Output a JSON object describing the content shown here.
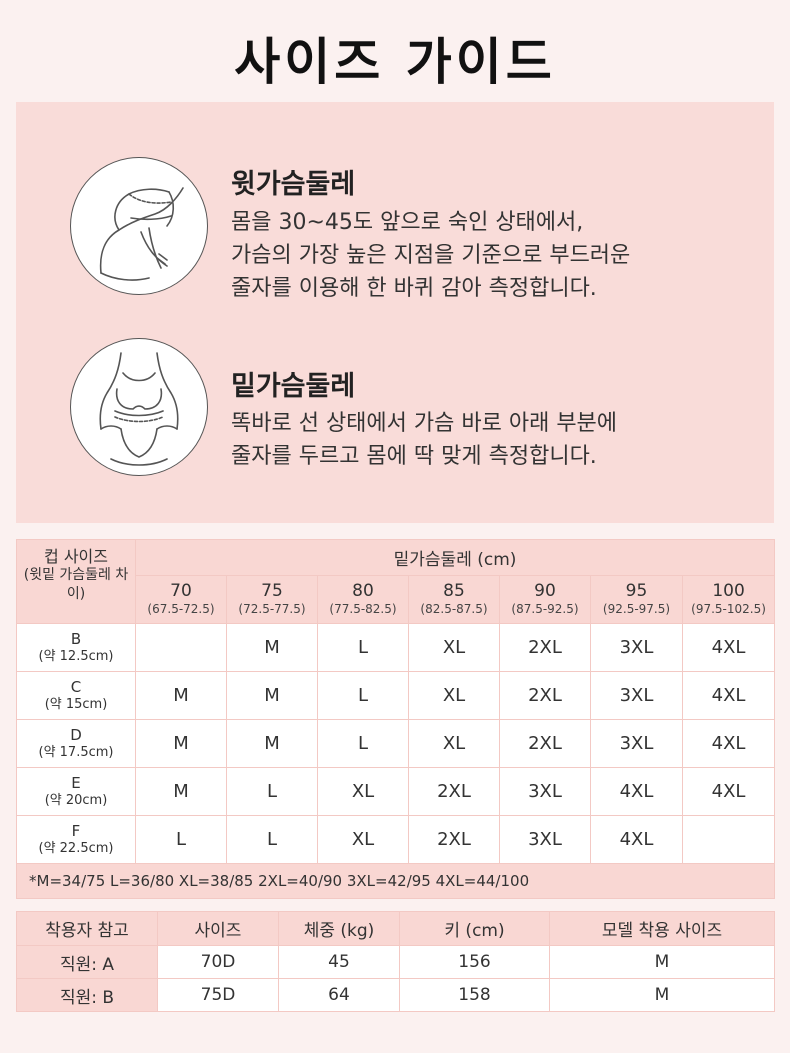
{
  "title": "사이즈 가이드",
  "guide": [
    {
      "heading": "윗가슴둘레",
      "lines": [
        "몸을 30~45도 앞으로 숙인 상태에서,",
        "가슴의 가장 높은 지점을 기준으로 부드러운",
        "줄자를 이용해 한 바퀴 감아 측정합니다."
      ]
    },
    {
      "heading": "밑가슴둘레",
      "lines": [
        "똑바로 선 상태에서 가슴 바로 아래 부분에",
        "줄자를 두르고 몸에 딱 맞게 측정합니다."
      ]
    }
  ],
  "size_table": {
    "corner_title": "컵 사이즈",
    "corner_sub": "(윗밑 가슴둘레 차이)",
    "band_header": "밑가슴둘레 (cm)",
    "columns": [
      {
        "size": "70",
        "range": "(67.5-72.5)"
      },
      {
        "size": "75",
        "range": "(72.5-77.5)"
      },
      {
        "size": "80",
        "range": "(77.5-82.5)"
      },
      {
        "size": "85",
        "range": "(82.5-87.5)"
      },
      {
        "size": "90",
        "range": "(87.5-92.5)"
      },
      {
        "size": "95",
        "range": "(92.5-97.5)"
      },
      {
        "size": "100",
        "range": "(97.5-102.5)"
      }
    ],
    "rows": [
      {
        "cup": "B",
        "diff": "(약 12.5cm)",
        "cells": [
          "",
          "M",
          "L",
          "XL",
          "2XL",
          "3XL",
          "4XL"
        ]
      },
      {
        "cup": "C",
        "diff": "(약 15cm)",
        "cells": [
          "M",
          "M",
          "L",
          "XL",
          "2XL",
          "3XL",
          "4XL"
        ]
      },
      {
        "cup": "D",
        "diff": "(약 17.5cm)",
        "cells": [
          "M",
          "M",
          "L",
          "XL",
          "2XL",
          "3XL",
          "4XL"
        ]
      },
      {
        "cup": "E",
        "diff": "(약 20cm)",
        "cells": [
          "M",
          "L",
          "XL",
          "2XL",
          "3XL",
          "4XL",
          "4XL"
        ]
      },
      {
        "cup": "F",
        "diff": "(약 22.5cm)",
        "cells": [
          "L",
          "L",
          "XL",
          "2XL",
          "3XL",
          "4XL",
          ""
        ]
      }
    ],
    "note": "*M=34/75 L=36/80 XL=38/85 2XL=40/90 3XL=42/95  4XL=44/100"
  },
  "fit_table": {
    "headers": [
      "착용자 참고",
      "사이즈",
      "체중 (kg)",
      "키 (cm)",
      "모델 착용 사이즈"
    ],
    "rows": [
      [
        "직원: A",
        "70D",
        "45",
        "156",
        "M"
      ],
      [
        "직원: B",
        "75D",
        "64",
        "158",
        "M"
      ]
    ]
  }
}
